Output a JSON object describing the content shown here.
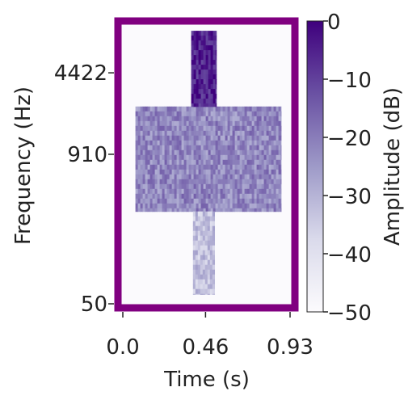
{
  "chart_data": {
    "type": "heatmap",
    "title": "",
    "xlabel": "Time (s)",
    "ylabel": "Frequency (Hz)",
    "xlim": [
      0.0,
      0.93
    ],
    "ylim": [
      50,
      11000
    ],
    "yscale": "log",
    "xticks": [
      0.0,
      0.46,
      0.93
    ],
    "xtick_labels": [
      "0.0",
      "0.46",
      "0.93"
    ],
    "yticks": [
      50,
      910,
      4422
    ],
    "ytick_labels": [
      "50",
      "910",
      "4422"
    ],
    "colorbar": {
      "label": "Amplitude (dB)",
      "range": [
        -50,
        0
      ],
      "ticks": [
        0,
        -10,
        -20,
        -30,
        -40,
        -50
      ],
      "tick_labels": [
        "0",
        "−10",
        "−20",
        "−30",
        "−40",
        "−50"
      ],
      "colormap": "Purples"
    },
    "frame_color": "#800080",
    "regions": [
      {
        "name": "background",
        "t": [
          0.0,
          0.93
        ],
        "f": [
          50,
          11000
        ],
        "db": -48
      },
      {
        "name": "broadband-block",
        "t": [
          0.07,
          0.88
        ],
        "f": [
          300,
          2300
        ],
        "db": -22
      },
      {
        "name": "high-frequency-column",
        "t": [
          0.38,
          0.52
        ],
        "f": [
          2300,
          10000
        ],
        "db": -5
      },
      {
        "name": "low-frequency-column",
        "t": [
          0.39,
          0.51
        ],
        "f": [
          60,
          300
        ],
        "db": -33
      }
    ]
  }
}
